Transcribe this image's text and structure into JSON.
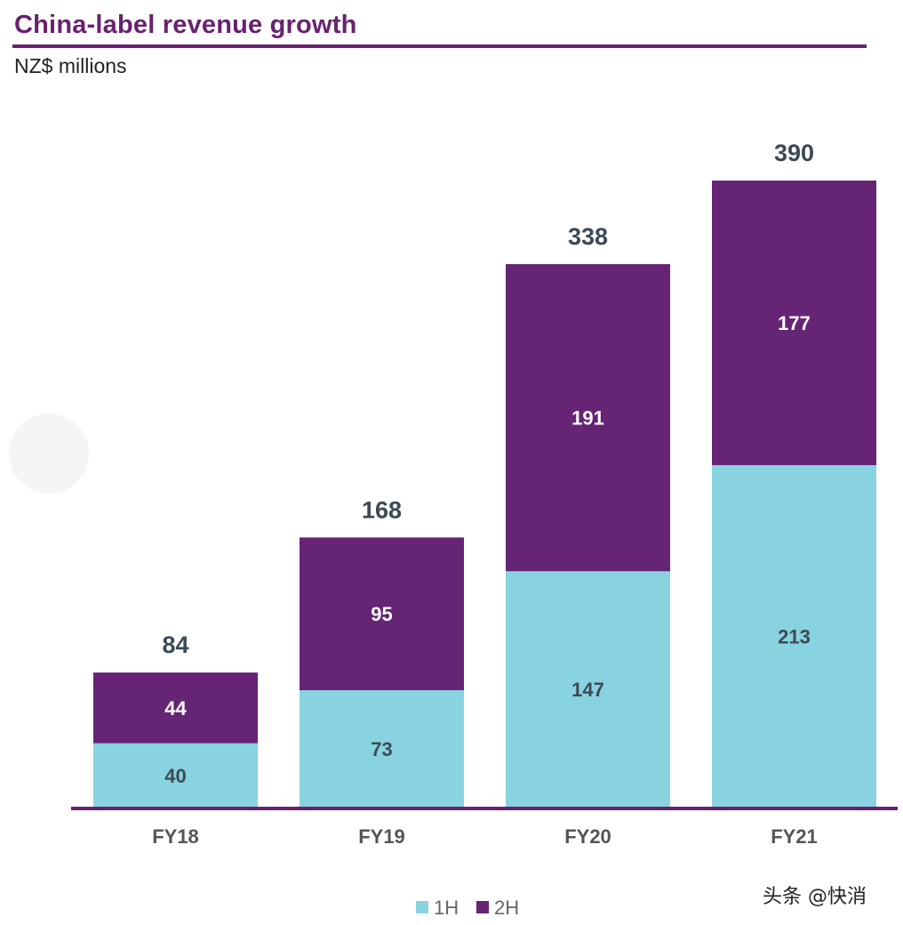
{
  "chart_data": {
    "type": "bar",
    "stacked": true,
    "title": "China-label revenue growth",
    "subtitle": "NZ$ millions",
    "categories": [
      "FY18",
      "FY19",
      "FY20",
      "FY21"
    ],
    "series": [
      {
        "name": "1H",
        "values": [
          40,
          73,
          147,
          213
        ],
        "color": "#88d3df"
      },
      {
        "name": "2H",
        "values": [
          44,
          95,
          191,
          177
        ],
        "color": "#662475"
      }
    ],
    "totals": [
      84,
      168,
      338,
      390
    ],
    "ylim": [
      0,
      390
    ],
    "grid": false,
    "legend": "bottom-center",
    "axis_color": "#68226f"
  },
  "watermark": "头条 @快消"
}
